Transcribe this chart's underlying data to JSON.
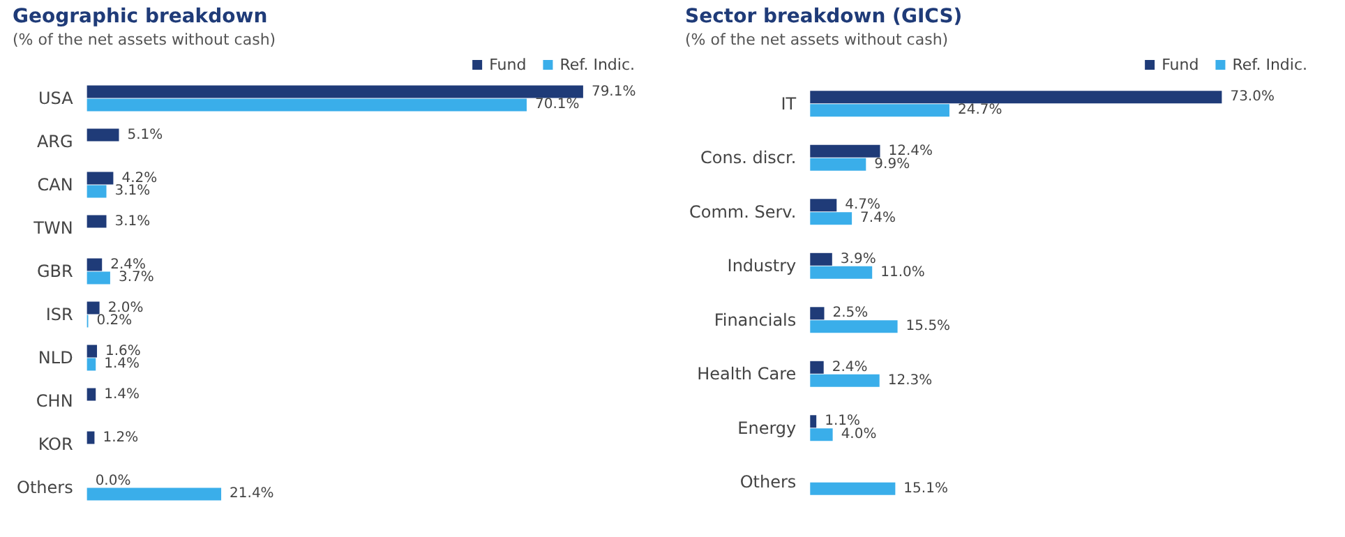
{
  "chart_data": [
    {
      "type": "bar",
      "orientation": "horizontal",
      "title": "Geographic breakdown",
      "subtitle": "(% of the net assets without cash)",
      "categories": [
        "USA",
        "ARG",
        "CAN",
        "TWN",
        "GBR",
        "ISR",
        "NLD",
        "CHN",
        "KOR",
        "Others"
      ],
      "series": [
        {
          "name": "Fund",
          "color": "#1f3b78",
          "values": [
            79.1,
            5.1,
            4.2,
            3.1,
            2.4,
            2.0,
            1.6,
            1.4,
            1.2,
            0.0
          ],
          "value_labels": [
            "79.1%",
            "5.1%",
            "4.2%",
            "3.1%",
            "2.4%",
            "2.0%",
            "1.6%",
            "1.4%",
            "1.2%",
            "0.0%"
          ]
        },
        {
          "name": "Ref. Indic.",
          "color": "#3aaeea",
          "values": [
            70.1,
            null,
            3.1,
            null,
            3.7,
            0.2,
            1.4,
            null,
            null,
            21.4
          ],
          "value_labels": [
            "70.1%",
            null,
            "3.1%",
            null,
            "3.7%",
            "0.2%",
            "1.4%",
            null,
            null,
            "21.4%"
          ]
        }
      ],
      "legend": "top right",
      "tick_labels": "y"
    },
    {
      "type": "bar",
      "orientation": "horizontal",
      "title": "Sector breakdown (GICS)",
      "subtitle": "(% of the net assets without cash)",
      "categories": [
        "IT",
        "Cons. discr.",
        "Comm. Serv.",
        "Industry",
        "Financials",
        "Health Care",
        "Energy",
        "Others"
      ],
      "series": [
        {
          "name": "Fund",
          "color": "#1f3b78",
          "values": [
            73.0,
            12.4,
            4.7,
            3.9,
            2.5,
            2.4,
            1.1,
            null
          ],
          "value_labels": [
            "73.0%",
            "12.4%",
            "4.7%",
            "3.9%",
            "2.5%",
            "2.4%",
            "1.1%",
            null
          ]
        },
        {
          "name": "Ref. Indic.",
          "color": "#3aaeea",
          "values": [
            24.7,
            9.9,
            7.4,
            11.0,
            15.5,
            12.3,
            4.0,
            15.1
          ],
          "value_labels": [
            "24.7%",
            "9.9%",
            "7.4%",
            "11.0%",
            "15.5%",
            "12.3%",
            "4.0%",
            "15.1%"
          ]
        }
      ],
      "legend": "top right",
      "tick_labels": "y"
    }
  ]
}
